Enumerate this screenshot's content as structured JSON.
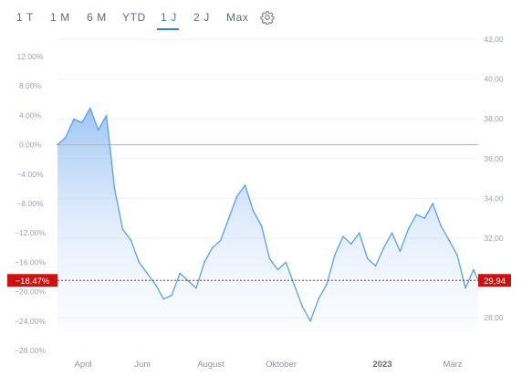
{
  "range_tabs": [
    {
      "label": "1 T",
      "active": false
    },
    {
      "label": "1 M",
      "active": false
    },
    {
      "label": "6 M",
      "active": false
    },
    {
      "label": "YTD",
      "active": false
    },
    {
      "label": "1 J",
      "active": true
    },
    {
      "label": "2 J",
      "active": false
    },
    {
      "label": "Max",
      "active": false
    }
  ],
  "settings_icon": "gear-icon",
  "colors": {
    "accent": "#2e7de1",
    "line": "#5aa0e8",
    "marker": "#cc1111",
    "zero_line": "#aab4bf"
  },
  "chart_data": {
    "type": "area",
    "left_axis": {
      "unit": "percent change",
      "ticks": [
        "12.00%",
        "8.00%",
        "4.00%",
        "0.00%",
        "−4.00%",
        "−8.00%",
        "−12.00%",
        "−16.00%",
        "−20.00%",
        "−24.00%",
        "−28.00%"
      ],
      "ylim": [
        -28,
        12
      ]
    },
    "right_axis": {
      "unit": "price",
      "ticks": [
        "42,00",
        "40,00",
        "38,00",
        "36,00",
        "34,00",
        "32,00",
        "28,00"
      ],
      "ylim": [
        26.7,
        42.0
      ]
    },
    "x_labels": [
      "April",
      "Juni",
      "August",
      "Oktober",
      "2023",
      "März"
    ],
    "x_labels_bold": [
      "2023"
    ],
    "grid": "horizontal",
    "x": [
      "2022-03-28",
      "2022-04-04",
      "2022-04-11",
      "2022-04-18",
      "2022-04-25",
      "2022-05-02",
      "2022-05-09",
      "2022-05-16",
      "2022-05-23",
      "2022-05-30",
      "2022-06-06",
      "2022-06-13",
      "2022-06-20",
      "2022-06-27",
      "2022-07-04",
      "2022-07-11",
      "2022-07-18",
      "2022-07-25",
      "2022-08-01",
      "2022-08-08",
      "2022-08-15",
      "2022-08-22",
      "2022-08-29",
      "2022-09-05",
      "2022-09-12",
      "2022-09-19",
      "2022-09-26",
      "2022-10-03",
      "2022-10-10",
      "2022-10-17",
      "2022-10-24",
      "2022-10-31",
      "2022-11-07",
      "2022-11-14",
      "2022-11-21",
      "2022-11-28",
      "2022-12-05",
      "2022-12-12",
      "2022-12-19",
      "2022-12-26",
      "2023-01-02",
      "2023-01-09",
      "2023-01-16",
      "2023-01-23",
      "2023-01-30",
      "2023-02-06",
      "2023-02-13",
      "2023-02-20",
      "2023-02-27",
      "2023-03-06",
      "2023-03-13",
      "2023-03-20",
      "2023-03-24"
    ],
    "series": [
      {
        "values": [
          0.0,
          1.0,
          3.5,
          3.0,
          5.0,
          2.0,
          4.0,
          -6.0,
          -11.5,
          -13.0,
          -16.0,
          -17.5,
          -19.0,
          -21.0,
          -20.5,
          -17.5,
          -18.5,
          -19.5,
          -16.0,
          -14.0,
          -13.0,
          -10.0,
          -7.0,
          -5.5,
          -9.0,
          -11.0,
          -15.5,
          -17.0,
          -16.0,
          -19.0,
          -22.0,
          -24.0,
          -21.0,
          -19.0,
          -15.0,
          -12.5,
          -13.5,
          -12.0,
          -15.5,
          -16.5,
          -14.0,
          -12.0,
          -14.5,
          -11.5,
          -9.5,
          -10.0,
          -8.0,
          -11.0,
          -13.0,
          -15.0,
          -19.5,
          -17.0,
          -18.47
        ]
      }
    ],
    "baseline_left": "0.00%",
    "current_change": "−18.47%",
    "current_price": "29,94"
  }
}
